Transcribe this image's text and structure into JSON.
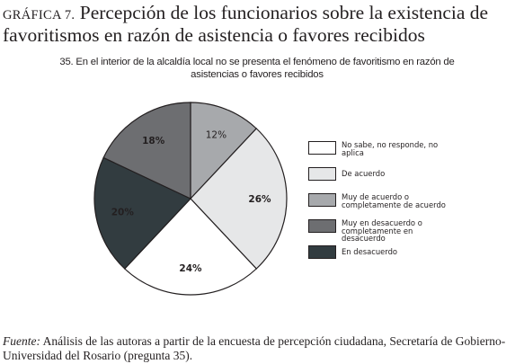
{
  "figure": {
    "label": "GRÁFICA 7.",
    "title": "Percepción de los funcionarios sobre la existencia de favoritismos en razón de asistencia o favores recibidos"
  },
  "chart_data": {
    "type": "pie",
    "title": "35. En el interior de la alcaldía local no se presenta el fenómeno de favoritismo en razón de asistencias o favores recibidos",
    "unit": "%",
    "legend_position": "right",
    "slices": [
      {
        "label": "Muy de acuerdo o completamente de acuerdo",
        "value": 12,
        "display": "12%",
        "color": "#a7a9ac"
      },
      {
        "label": "De acuerdo",
        "value": 26,
        "display": "26%",
        "color": "#e6e7e8"
      },
      {
        "label": "No sabe, no responde, no aplica",
        "value": 24,
        "display": "24%",
        "color": "#ffffff"
      },
      {
        "label": "En desacuerdo",
        "value": 20,
        "display": "20%",
        "color": "#323c40"
      },
      {
        "label": "Muy en desacuerdo o completamente en desacuerdo",
        "value": 18,
        "display": "18%",
        "color": "#6d6e71"
      }
    ],
    "legend": [
      {
        "label": "No sabe, no responde, no aplica",
        "color": "#ffffff"
      },
      {
        "label": "De acuerdo",
        "color": "#e6e7e8"
      },
      {
        "label": "Muy de acuerdo o completamente de acuerdo",
        "color": "#a7a9ac"
      },
      {
        "label": "Muy en desacuerdo o completamente en desacuerdo",
        "color": "#6d6e71"
      },
      {
        "label": "En desacuerdo",
        "color": "#323c40"
      }
    ]
  },
  "source": {
    "label": "Fuente:",
    "text": "Análisis de las autoras a partir de la encuesta de percepción ciudadana, Secretaría de Gobierno-Universidad del Rosario (pregunta 35)."
  }
}
